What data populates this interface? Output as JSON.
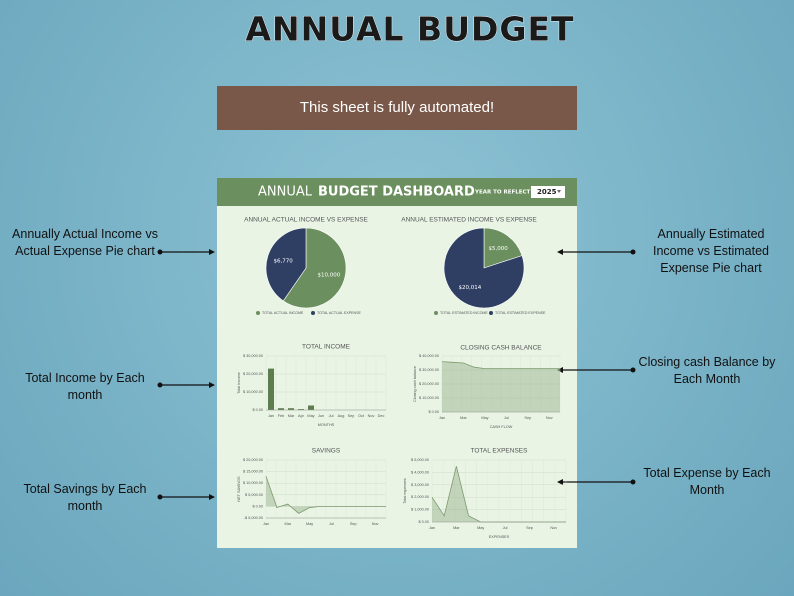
{
  "title": "ANNUAL BUDGET",
  "banner": "This sheet is fully automated!",
  "callouts": [
    "Annually Actual Income vs Actual Expense Pie chart",
    "Total Income by Each month",
    "Total Savings by Each month",
    "Annually Estimated Income vs Estimated Expense Pie chart",
    "Closing cash Balance by Each Month",
    "Total Expense by Each Month"
  ],
  "dashboard": {
    "title_light": "ANNUAL",
    "title_bold": "BUDGET DASHBOARD",
    "year_label": "YEAR TO REFLECT ➤",
    "year": "2025"
  },
  "chart_data": [
    {
      "type": "pie",
      "title": "ANNUAL ACTUAL INCOME VS EXPENSE",
      "categories": [
        "TOTAL ACTUAL INCOME",
        "TOTAL ACTUAL EXPENSE"
      ],
      "values": [
        10000,
        6770
      ],
      "value_labels": [
        "$10,000",
        "$6,770"
      ],
      "colors": [
        "#6b8f5e",
        "#2e3f63"
      ]
    },
    {
      "type": "pie",
      "title": "ANNUAL ESTIMATED INCOME VS EXPENSE",
      "categories": [
        "TOTAL ESTIMATED INCOME",
        "TOTAL ESTIMATED EXPENSE"
      ],
      "values": [
        5000,
        20014
      ],
      "value_labels": [
        "$5,000",
        "$20,014"
      ],
      "colors": [
        "#6b8f5e",
        "#2e3f63"
      ]
    },
    {
      "type": "bar",
      "title": "TOTAL INCOME",
      "x_label": "MONTHS",
      "y_label": "Total Income",
      "categories": [
        "Jan",
        "Feb",
        "Mar",
        "Apr",
        "May",
        "Jun",
        "Jul",
        "Aug",
        "Sep",
        "Oct",
        "Nov",
        "Dec"
      ],
      "values": [
        23000,
        1000,
        1000,
        500,
        2500,
        0,
        0,
        0,
        0,
        0,
        0,
        0
      ],
      "color": "#5d7d4f",
      "ylim": [
        0,
        30000
      ],
      "yticks": [
        {
          "value": 0,
          "label": "$ 0.00"
        },
        {
          "value": 10000,
          "label": "$ 10,000.00"
        },
        {
          "value": 20000,
          "label": "$ 20,000.00"
        },
        {
          "value": 30000,
          "label": "$ 30,000.00"
        }
      ],
      "grid": true
    },
    {
      "type": "area",
      "title": "CLOSING CASH BALANCE",
      "x_label": "CASH FLOW",
      "y_label": "Closing cash balance",
      "categories": [
        "Jan",
        null,
        "Mar",
        null,
        "May",
        null,
        "Jul",
        null,
        "Sep",
        null,
        "Nov",
        null
      ],
      "values": [
        36000,
        35500,
        35000,
        32000,
        31000,
        31000,
        31000,
        31000,
        31000,
        31000,
        31000,
        31000
      ],
      "color": "#7c9a6e",
      "ylim": [
        0,
        40000
      ],
      "yticks": [
        {
          "value": 0,
          "label": "$ 0.00"
        },
        {
          "value": 10000,
          "label": "$ 10,000.00"
        },
        {
          "value": 20000,
          "label": "$ 20,000.00"
        },
        {
          "value": 30000,
          "label": "$ 30,000.00"
        },
        {
          "value": 40000,
          "label": "$ 40,000.00"
        }
      ],
      "grid": true
    },
    {
      "type": "area",
      "title": "SAVINGS",
      "y_label": "NET SAVINGS",
      "categories": [
        "Jan",
        null,
        "Mar",
        null,
        "May",
        null,
        "Jul",
        null,
        "Sep",
        null,
        "Nov",
        null
      ],
      "values": [
        13000,
        -500,
        1000,
        -3000,
        -500,
        0,
        0,
        0,
        0,
        0,
        0,
        0
      ],
      "color": "#7c9a6e",
      "ylim": [
        -5000,
        20000
      ],
      "yticks": [
        {
          "value": -5000,
          "label": "-$ 5,000.00"
        },
        {
          "value": 0,
          "label": "$ 0.00"
        },
        {
          "value": 5000,
          "label": "$ 5,000.00"
        },
        {
          "value": 10000,
          "label": "$ 10,000.00"
        },
        {
          "value": 15000,
          "label": "$ 15,000.00"
        },
        {
          "value": 20000,
          "label": "$ 20,000.00"
        }
      ],
      "grid": true
    },
    {
      "type": "area",
      "title": "TOTAL EXPENSES",
      "x_label": "EXPENSES",
      "y_label": "Total expenses",
      "categories": [
        "Jan",
        null,
        "Mar",
        null,
        "May",
        null,
        "Jul",
        null,
        "Sep",
        null,
        "Nov",
        null
      ],
      "values": [
        2000,
        500,
        4500,
        500,
        0,
        0,
        0,
        0,
        0,
        0,
        0,
        0
      ],
      "color": "#7c9a6e",
      "ylim": [
        0,
        5000
      ],
      "yticks": [
        {
          "value": 0,
          "label": "$ 0.00"
        },
        {
          "value": 1000,
          "label": "$ 1,000.00"
        },
        {
          "value": 2000,
          "label": "$ 2,000.00"
        },
        {
          "value": 3000,
          "label": "$ 3,000.00"
        },
        {
          "value": 4000,
          "label": "$ 4,000.00"
        },
        {
          "value": 5000,
          "label": "$ 5,000.00"
        }
      ],
      "grid": true
    }
  ]
}
